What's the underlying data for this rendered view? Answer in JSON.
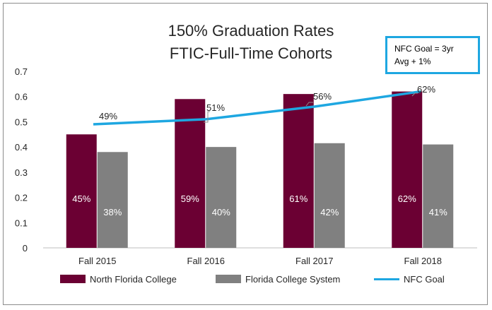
{
  "chart_data": {
    "type": "bar",
    "title_line1": "150% Graduation Rates",
    "title_line2": "FTIC-Full-Time Cohorts",
    "categories": [
      "Fall 2015",
      "Fall 2016",
      "Fall 2017",
      "Fall 2018"
    ],
    "ylim": [
      0,
      0.7
    ],
    "yticks": [
      "0",
      "0.1",
      "0.2",
      "0.3",
      "0.4",
      "0.5",
      "0.6",
      "0.7"
    ],
    "ytick_values": [
      0,
      0.1,
      0.2,
      0.3,
      0.4,
      0.5,
      0.6,
      0.7
    ],
    "series": [
      {
        "name": "North Florida College",
        "type": "bar",
        "color": "#6b0033",
        "values": [
          0.45,
          0.59,
          0.61,
          0.62
        ],
        "labels": [
          "45%",
          "59%",
          "61%",
          "62%"
        ]
      },
      {
        "name": "Florida College System",
        "type": "bar",
        "color": "#808080",
        "values": [
          0.38,
          0.4,
          0.415,
          0.41
        ],
        "labels": [
          "38%",
          "40%",
          "42%",
          "41%"
        ]
      },
      {
        "name": "NFC Goal",
        "type": "line",
        "color": "#1ea7e1",
        "values": [
          0.49,
          0.51,
          0.56,
          0.62
        ],
        "labels": [
          "49%",
          "51%",
          "56%",
          "62%"
        ]
      }
    ],
    "annotation_line1": "NFC Goal = 3yr",
    "annotation_line2": "Avg + 1%",
    "gridlines": false,
    "legend_position": "bottom"
  }
}
